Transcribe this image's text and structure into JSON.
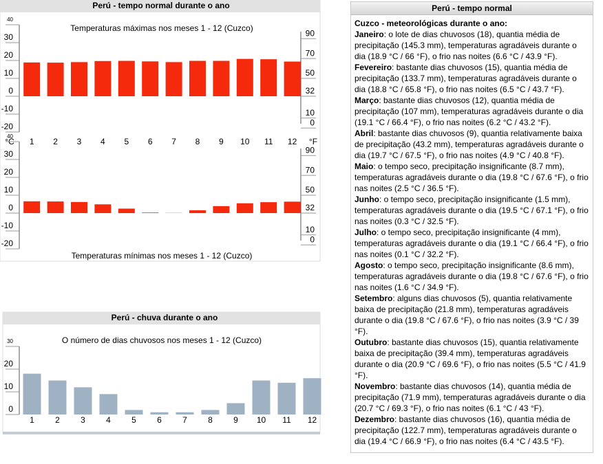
{
  "temp_header": "Perú - tempo normal durante o ano",
  "rain_header": "Perú - chuva durante o ano",
  "chart_data": [
    {
      "type": "bar",
      "title": "Temperaturas máximas nos meses 1 - 12 (Cuzco)",
      "categories": [
        "1",
        "2",
        "3",
        "4",
        "5",
        "6",
        "7",
        "8",
        "9",
        "10",
        "11",
        "12"
      ],
      "values": [
        18.9,
        18.8,
        19.1,
        19.7,
        19.8,
        19.5,
        19.1,
        19.8,
        19.8,
        20.9,
        20.7,
        19.4
      ],
      "color": "#f5290c",
      "ylabel": "°C",
      "y2label": "°F",
      "ylim": [
        -20,
        40
      ],
      "yticks": [
        -20,
        -10,
        0,
        10,
        20,
        30,
        40
      ],
      "y2lim": [
        -4,
        104
      ],
      "y2ticks": [
        0,
        10,
        32,
        50,
        70,
        90
      ]
    },
    {
      "type": "bar",
      "title": "Temperaturas mínimas nos meses 1 - 12 (Cuzco)",
      "values": [
        6.6,
        6.5,
        6.2,
        4.9,
        2.5,
        0.3,
        0.1,
        1.6,
        3.9,
        5.5,
        6.1,
        6.4
      ],
      "color": "#f5290c",
      "ylim": [
        -20,
        40
      ],
      "yticks": [
        -20,
        -10,
        0,
        10,
        20,
        30,
        40
      ],
      "y2lim": [
        -4,
        104
      ],
      "y2ticks": [
        0,
        10,
        32,
        50,
        70,
        90
      ]
    },
    {
      "type": "bar",
      "title": "O número de dias chuvosos nos meses 1 - 12 (Cuzco)",
      "categories": [
        "1",
        "2",
        "3",
        "4",
        "5",
        "6",
        "7",
        "8",
        "9",
        "10",
        "11",
        "12"
      ],
      "values": [
        18,
        15,
        12,
        9,
        2,
        1,
        1,
        2,
        5,
        15,
        14,
        16
      ],
      "color": "#9fb2c4",
      "ylim": [
        0,
        30
      ],
      "yticks": [
        0,
        10,
        20,
        30
      ]
    }
  ],
  "climate_panel": {
    "header": "Perú - tempo normal",
    "subtitle": "Cuzco - meteorológicas durante o ano:",
    "entries": [
      {
        "month": "Janeiro",
        "text": ": o lote de dias chuvosos (18), quantia média de precipitação (145.3 mm), temperaturas agradáveis durante o dia (18.9 °C / 66 °F), o frio nas noites (6.6 °C / 43.9 °F)."
      },
      {
        "month": "Fevereiro",
        "text": ": bastante dias chuvosos (15), quantia média de precipitação (133.7 mm), temperaturas agradáveis durante o dia (18.8 °C / 65.8 °F), o frio nas noites (6.5 °C / 43.7 °F)."
      },
      {
        "month": "Março",
        "text": ": bastante dias chuvosos (12), quantia média de precipitação (107 mm), temperaturas agradáveis durante o dia (19.1 °C / 66.4 °F), o frio nas noites (6.2 °C / 43.2 °F)."
      },
      {
        "month": "Abril",
        "text": ": bastante dias chuvosos (9), quantia relativamente baixa de precipitação (43.2 mm), temperaturas agradáveis durante o dia (19.7 °C / 67.5 °F), o frio nas noites (4.9 °C / 40.8 °F)."
      },
      {
        "month": "Maio",
        "text": ": o tempo seco, precipitação insignificante (8.7 mm), temperaturas agradáveis durante o dia (19.8 °C / 67.6 °F), o frio nas noites (2.5 °C / 36.5 °F)."
      },
      {
        "month": "Junho",
        "text": ": o tempo seco, precipitação insignificante (1.5 mm), temperaturas agradáveis durante o dia (19.5 °C / 67.1 °F), o frio nas noites (0.3 °C / 32.5 °F)."
      },
      {
        "month": "Julho",
        "text": ": o tempo seco, precipitação insignificante (4 mm), temperaturas agradáveis durante o dia (19.1 °C / 66.4 °F), o frio nas noites (0.1 °C / 32.2 °F)."
      },
      {
        "month": "Agosto",
        "text": ": o tempo seco, precipitação insignificante (8.6 mm), temperaturas agradáveis durante o dia (19.8 °C / 67.6 °F), o frio nas noites (1.6 °C / 34.9 °F)."
      },
      {
        "month": "Setembro",
        "text": ": alguns dias chuvosos (5), quantia relativamente baixa de precipitação (21.8 mm), temperaturas agradáveis durante o dia (19.8 °C / 67.6 °F), o frio nas noites (3.9 °C / 39 °F)."
      },
      {
        "month": "Outubro",
        "text": ": bastante dias chuvosos (15), quantia relativamente baixa de precipitação (39.4 mm), temperaturas agradáveis durante o dia (20.9 °C / 69.6 °F), o frio nas noites (5.5 °C / 41.9 °F)."
      },
      {
        "month": "Novembro",
        "text": ": bastante dias chuvosos (14), quantia média de precipitação (71.9 mm), temperaturas agradáveis durante o dia (20.7 °C / 69.3 °F), o frio nas noites (6.1 °C / 43 °F)."
      },
      {
        "month": "Dezembro",
        "text": ": bastante dias chuvosos (16), quantia média de precipitação (122.7 mm), temperaturas agradáveis durante o dia (19.4 °C / 66.9 °F), o frio nas noites (6.4 °C / 43.5 °F)."
      }
    ]
  }
}
